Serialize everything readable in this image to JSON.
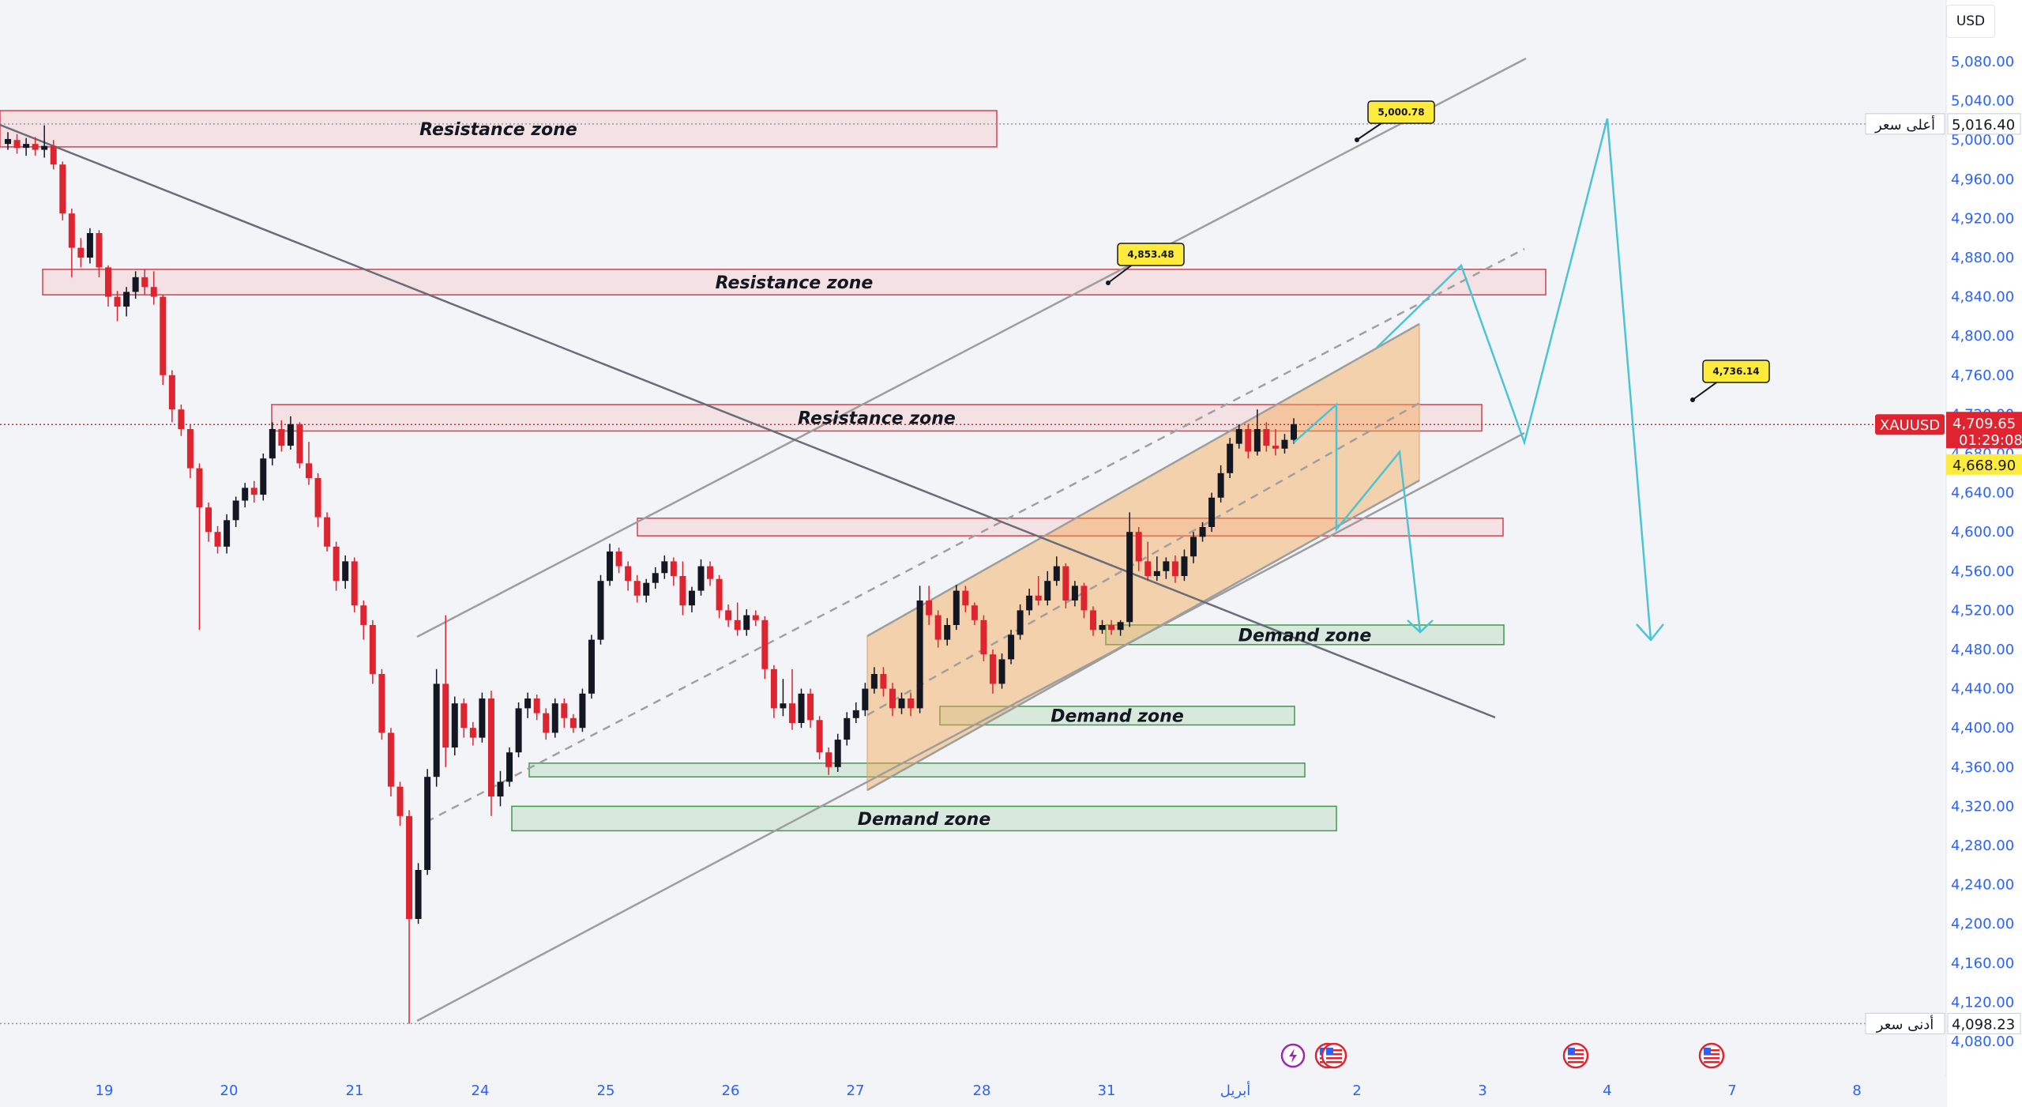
{
  "currency_button": "USD",
  "symbol": "XAUUSD",
  "current_price": "4,709.65",
  "countdown": "01:29:08",
  "prev_price": "4,668.90",
  "high_label": "أعلى سعر",
  "high_value": "5,016.40",
  "low_label": "أدنى سعر",
  "low_value": "4,098.23",
  "colors": {
    "up": "#131722",
    "down": "#e0242f",
    "accent": "#2962ff",
    "projection": "#4cc4d4",
    "tag": "#e0242f",
    "callout": "#ffeb3b"
  },
  "icons": [
    "flash-icon",
    "us-flag-icon",
    "us-flag-icon",
    "us-flag-icon",
    "us-flag-icon"
  ],
  "chart_data": {
    "type": "candlestick",
    "ylim": [
      4080,
      5100
    ],
    "y_ticks": [
      "4,080.00",
      "4,120.00",
      "4,160.00",
      "4,200.00",
      "4,240.00",
      "4,280.00",
      "4,320.00",
      "4,360.00",
      "4,400.00",
      "4,440.00",
      "4,480.00",
      "4,520.00",
      "4,560.00",
      "4,600.00",
      "4,640.00",
      "4,680.00",
      "4,720.00",
      "4,760.00",
      "4,800.00",
      "4,840.00",
      "4,880.00",
      "4,920.00",
      "4,960.00",
      "5,000.00",
      "5,040.00",
      "5,080.00"
    ],
    "x_ticks": [
      "19",
      "20",
      "21",
      "24",
      "25",
      "26",
      "27",
      "28",
      "31",
      "أبريل",
      "2",
      "3",
      "4",
      "7",
      "8"
    ],
    "candles": [
      [
        4996,
        5001,
        4990,
        5008
      ],
      [
        5000,
        4992,
        4986,
        5006
      ],
      [
        4992,
        4996,
        4984,
        5002
      ],
      [
        4996,
        4990,
        4984,
        5003
      ],
      [
        4990,
        4994,
        4982,
        5015
      ],
      [
        4994,
        4975,
        4970,
        5000
      ],
      [
        4975,
        4925,
        4918,
        4978
      ],
      [
        4925,
        4890,
        4860,
        4930
      ],
      [
        4890,
        4880,
        4870,
        4900
      ],
      [
        4880,
        4905,
        4874,
        4910
      ],
      [
        4905,
        4870,
        4860,
        4908
      ],
      [
        4870,
        4840,
        4830,
        4872
      ],
      [
        4840,
        4830,
        4815,
        4846
      ],
      [
        4830,
        4845,
        4820,
        4850
      ],
      [
        4845,
        4860,
        4838,
        4866
      ],
      [
        4860,
        4850,
        4842,
        4868
      ],
      [
        4850,
        4840,
        4832,
        4866
      ],
      [
        4840,
        4760,
        4750,
        4842
      ],
      [
        4760,
        4725,
        4712,
        4765
      ],
      [
        4725,
        4705,
        4698,
        4730
      ],
      [
        4705,
        4665,
        4655,
        4710
      ],
      [
        4665,
        4625,
        4500,
        4670
      ],
      [
        4625,
        4600,
        4590,
        4630
      ],
      [
        4600,
        4585,
        4578,
        4606
      ],
      [
        4585,
        4612,
        4578,
        4618
      ],
      [
        4612,
        4632,
        4605,
        4636
      ],
      [
        4632,
        4645,
        4625,
        4650
      ],
      [
        4645,
        4638,
        4630,
        4652
      ],
      [
        4638,
        4675,
        4632,
        4680
      ],
      [
        4675,
        4705,
        4668,
        4712
      ],
      [
        4705,
        4688,
        4682,
        4714
      ],
      [
        4688,
        4710,
        4684,
        4718
      ],
      [
        4710,
        4670,
        4665,
        4712
      ],
      [
        4670,
        4655,
        4648,
        4692
      ],
      [
        4655,
        4615,
        4605,
        4660
      ],
      [
        4615,
        4585,
        4580,
        4620
      ],
      [
        4585,
        4550,
        4540,
        4590
      ],
      [
        4550,
        4570,
        4542,
        4576
      ],
      [
        4570,
        4525,
        4518,
        4574
      ],
      [
        4525,
        4505,
        4490,
        4530
      ],
      [
        4505,
        4455,
        4445,
        4510
      ],
      [
        4455,
        4395,
        4388,
        4460
      ],
      [
        4395,
        4340,
        4330,
        4400
      ],
      [
        4340,
        4310,
        4300,
        4345
      ],
      [
        4310,
        4205,
        4098,
        4316
      ],
      [
        4205,
        4255,
        4200,
        4262
      ],
      [
        4255,
        4350,
        4250,
        4358
      ],
      [
        4350,
        4445,
        4340,
        4460
      ],
      [
        4445,
        4380,
        4360,
        4515
      ],
      [
        4380,
        4425,
        4372,
        4432
      ],
      [
        4425,
        4400,
        4390,
        4430
      ],
      [
        4400,
        4390,
        4382,
        4406
      ],
      [
        4390,
        4430,
        4385,
        4436
      ],
      [
        4430,
        4330,
        4310,
        4438
      ],
      [
        4330,
        4345,
        4320,
        4356
      ],
      [
        4345,
        4375,
        4340,
        4380
      ],
      [
        4375,
        4420,
        4370,
        4426
      ],
      [
        4420,
        4430,
        4410,
        4436
      ],
      [
        4430,
        4415,
        4408,
        4434
      ],
      [
        4415,
        4395,
        4388,
        4420
      ],
      [
        4395,
        4425,
        4390,
        4430
      ],
      [
        4425,
        4410,
        4400,
        4430
      ],
      [
        4410,
        4400,
        4395,
        4414
      ],
      [
        4400,
        4435,
        4396,
        4440
      ],
      [
        4435,
        4490,
        4430,
        4495
      ],
      [
        4490,
        4550,
        4485,
        4556
      ],
      [
        4550,
        4580,
        4545,
        4588
      ],
      [
        4580,
        4565,
        4558,
        4584
      ],
      [
        4565,
        4550,
        4540,
        4570
      ],
      [
        4550,
        4535,
        4528,
        4556
      ],
      [
        4535,
        4548,
        4528,
        4552
      ],
      [
        4548,
        4558,
        4542,
        4564
      ],
      [
        4558,
        4570,
        4552,
        4576
      ],
      [
        4570,
        4555,
        4545,
        4574
      ],
      [
        4555,
        4525,
        4515,
        4570
      ],
      [
        4525,
        4540,
        4518,
        4544
      ],
      [
        4540,
        4565,
        4535,
        4572
      ],
      [
        4565,
        4552,
        4545,
        4570
      ],
      [
        4552,
        4520,
        4512,
        4556
      ],
      [
        4520,
        4510,
        4503,
        4526
      ],
      [
        4510,
        4500,
        4494,
        4528
      ],
      [
        4500,
        4515,
        4494,
        4521
      ],
      [
        4515,
        4510,
        4504,
        4520
      ],
      [
        4510,
        4460,
        4450,
        4514
      ],
      [
        4460,
        4420,
        4410,
        4464
      ],
      [
        4420,
        4425,
        4412,
        4450
      ],
      [
        4425,
        4405,
        4398,
        4460
      ],
      [
        4405,
        4435,
        4400,
        4440
      ],
      [
        4435,
        4408,
        4400,
        4440
      ],
      [
        4408,
        4375,
        4368,
        4412
      ],
      [
        4375,
        4360,
        4352,
        4380
      ],
      [
        4360,
        4388,
        4355,
        4394
      ],
      [
        4388,
        4410,
        4382,
        4416
      ],
      [
        4410,
        4418,
        4405,
        4426
      ],
      [
        4418,
        4440,
        4412,
        4446
      ],
      [
        4440,
        4455,
        4435,
        4462
      ],
      [
        4455,
        4440,
        4432,
        4462
      ],
      [
        4440,
        4420,
        4412,
        4446
      ],
      [
        4420,
        4430,
        4414,
        4436
      ],
      [
        4430,
        4420,
        4412,
        4436
      ],
      [
        4420,
        4530,
        4415,
        4545
      ],
      [
        4530,
        4515,
        4505,
        4545
      ],
      [
        4515,
        4490,
        4482,
        4520
      ],
      [
        4490,
        4505,
        4484,
        4512
      ],
      [
        4505,
        4540,
        4500,
        4546
      ],
      [
        4540,
        4525,
        4518,
        4545
      ],
      [
        4525,
        4510,
        4505,
        4528
      ],
      [
        4510,
        4475,
        4468,
        4515
      ],
      [
        4475,
        4445,
        4435,
        4480
      ],
      [
        4445,
        4470,
        4440,
        4476
      ],
      [
        4470,
        4495,
        4465,
        4500
      ],
      [
        4495,
        4520,
        4490,
        4526
      ],
      [
        4520,
        4535,
        4515,
        4542
      ],
      [
        4535,
        4530,
        4525,
        4555
      ],
      [
        4530,
        4550,
        4525,
        4560
      ],
      [
        4550,
        4565,
        4545,
        4575
      ],
      [
        4565,
        4530,
        4522,
        4568
      ],
      [
        4530,
        4545,
        4524,
        4550
      ],
      [
        4545,
        4520,
        4512,
        4548
      ],
      [
        4520,
        4500,
        4494,
        4524
      ],
      [
        4500,
        4505,
        4496,
        4510
      ],
      [
        4505,
        4500,
        4495,
        4510
      ],
      [
        4500,
        4508,
        4494,
        4510
      ],
      [
        4508,
        4600,
        4503,
        4620
      ],
      [
        4600,
        4570,
        4560,
        4605
      ],
      [
        4570,
        4555,
        4550,
        4590
      ],
      [
        4555,
        4560,
        4550,
        4575
      ],
      [
        4560,
        4570,
        4552,
        4574
      ],
      [
        4570,
        4555,
        4548,
        4576
      ],
      [
        4555,
        4575,
        4550,
        4582
      ],
      [
        4575,
        4595,
        4568,
        4600
      ],
      [
        4595,
        4605,
        4590,
        4610
      ],
      [
        4605,
        4635,
        4600,
        4640
      ],
      [
        4635,
        4660,
        4630,
        4668
      ],
      [
        4660,
        4690,
        4655,
        4696
      ],
      [
        4690,
        4705,
        4685,
        4710
      ],
      [
        4705,
        4682,
        4675,
        4710
      ],
      [
        4682,
        4705,
        4678,
        4725
      ],
      [
        4705,
        4688,
        4682,
        4712
      ],
      [
        4688,
        4685,
        4678,
        4705
      ],
      [
        4685,
        4694,
        4680,
        4700
      ],
      [
        4694,
        4710,
        4690,
        4716
      ]
    ],
    "zones": [
      {
        "label": "Resistance zone",
        "type": "resistance"
      },
      {
        "label": "Resistance zone",
        "type": "resistance"
      },
      {
        "label": "Resistance zone",
        "type": "resistance"
      },
      {
        "label": "",
        "type": "resistance"
      },
      {
        "label": "Demand zone",
        "type": "demand"
      },
      {
        "label": "Demand zone",
        "type": "demand"
      },
      {
        "label": "",
        "type": "demand"
      },
      {
        "label": "Demand zone",
        "type": "demand"
      }
    ],
    "callouts": [
      "5,000.78",
      "4,853.48",
      "4,736.14"
    ]
  }
}
